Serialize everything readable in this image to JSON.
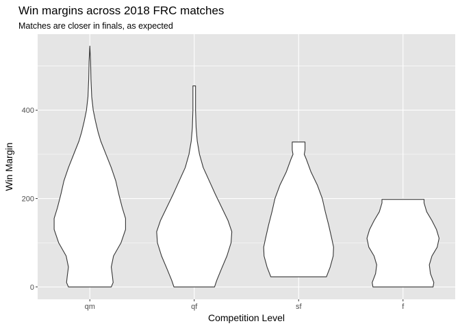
{
  "chart_data": {
    "type": "violin",
    "title": "Win margins across 2018 FRC matches",
    "subtitle": "Matches are closer in finals, as expected",
    "xlabel": "Competition Level",
    "ylabel": "Win Margin",
    "categories": [
      "qm",
      "qf",
      "sf",
      "f"
    ],
    "ylim": [
      -28,
      572
    ],
    "yticks": [
      0,
      200,
      400
    ],
    "grid": true,
    "colors": {
      "panel": "#e5e5e5",
      "grid_major": "#ffffff",
      "violin_fill": "#ffffff",
      "violin_stroke": "#333333",
      "tick": "#333333"
    },
    "violins": [
      {
        "category": "qm",
        "min": 0,
        "max": 545,
        "profile": [
          [
            0,
            0.57
          ],
          [
            10,
            0.62
          ],
          [
            25,
            0.6
          ],
          [
            45,
            0.57
          ],
          [
            70,
            0.63
          ],
          [
            100,
            0.83
          ],
          [
            130,
            0.95
          ],
          [
            155,
            0.95
          ],
          [
            180,
            0.86
          ],
          [
            210,
            0.77
          ],
          [
            240,
            0.69
          ],
          [
            270,
            0.57
          ],
          [
            300,
            0.43
          ],
          [
            330,
            0.29
          ],
          [
            350,
            0.22
          ],
          [
            375,
            0.15
          ],
          [
            400,
            0.09
          ],
          [
            430,
            0.05
          ],
          [
            470,
            0.03
          ],
          [
            510,
            0.02
          ],
          [
            545,
            0.0
          ]
        ]
      },
      {
        "category": "qf",
        "min": 0,
        "max": 455,
        "profile": [
          [
            0,
            0.54
          ],
          [
            15,
            0.6
          ],
          [
            40,
            0.72
          ],
          [
            70,
            0.87
          ],
          [
            100,
            0.98
          ],
          [
            125,
            1.0
          ],
          [
            150,
            0.9
          ],
          [
            180,
            0.73
          ],
          [
            210,
            0.56
          ],
          [
            240,
            0.4
          ],
          [
            270,
            0.24
          ],
          [
            300,
            0.14
          ],
          [
            330,
            0.08
          ],
          [
            360,
            0.05
          ],
          [
            400,
            0.035
          ],
          [
            455,
            0.035
          ]
        ]
      },
      {
        "category": "sf",
        "min": 23,
        "max": 328,
        "profile": [
          [
            23,
            0.74
          ],
          [
            45,
            0.84
          ],
          [
            70,
            0.92
          ],
          [
            90,
            0.93
          ],
          [
            110,
            0.88
          ],
          [
            140,
            0.8
          ],
          [
            170,
            0.71
          ],
          [
            200,
            0.63
          ],
          [
            230,
            0.5
          ],
          [
            260,
            0.33
          ],
          [
            290,
            0.2
          ],
          [
            300,
            0.15
          ],
          [
            310,
            0.17
          ],
          [
            328,
            0.17
          ]
        ]
      },
      {
        "category": "f",
        "min": 0,
        "max": 198,
        "profile": [
          [
            0,
            0.8
          ],
          [
            10,
            0.82
          ],
          [
            30,
            0.73
          ],
          [
            50,
            0.7
          ],
          [
            70,
            0.77
          ],
          [
            90,
            0.91
          ],
          [
            110,
            0.96
          ],
          [
            130,
            0.89
          ],
          [
            150,
            0.77
          ],
          [
            170,
            0.63
          ],
          [
            190,
            0.56
          ],
          [
            198,
            0.56
          ]
        ]
      }
    ]
  }
}
